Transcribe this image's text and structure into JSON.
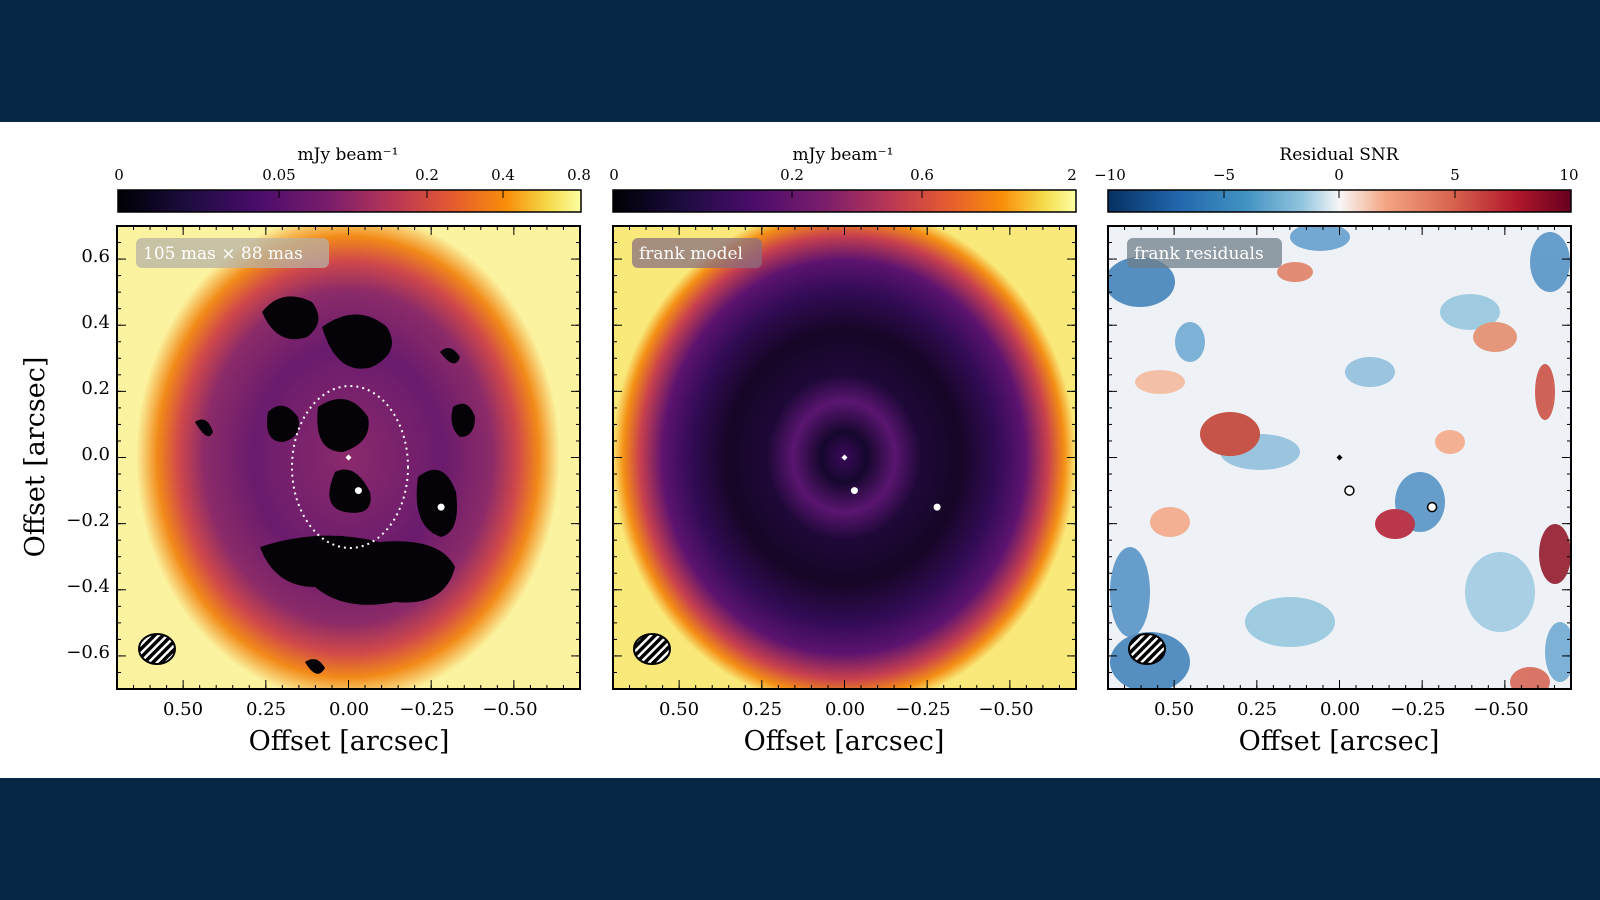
{
  "panels": [
    {
      "id": "data",
      "colorbar": {
        "label": "mJy beam⁻¹",
        "ticks": [
          {
            "label": "0",
            "value": 0
          },
          {
            "label": "0.05",
            "value": 0.05
          },
          {
            "label": "0.2",
            "value": 0.2
          },
          {
            "label": "0.4",
            "value": 0.4
          },
          {
            "label": "0.8",
            "value": 0.8
          }
        ],
        "scale": "asinh",
        "colormap": "inferno"
      },
      "badge": "105 mas × 88 mas",
      "xlabel": "Offset [arcsec]",
      "ylabel": "Offset [arcsec]",
      "xtick_labels": [
        "0.50",
        "0.25",
        "0.00",
        "−0.25",
        "−0.50"
      ],
      "ytick_labels": [
        "0.6",
        "0.4",
        "0.2",
        "0.0",
        "−0.2",
        "−0.4",
        "−0.6"
      ],
      "marker_style": "filled-white"
    },
    {
      "id": "model",
      "colorbar": {
        "label": "mJy beam⁻¹",
        "ticks": [
          {
            "label": "0",
            "value": 0
          },
          {
            "label": "0.2",
            "value": 0.2
          },
          {
            "label": "0.6",
            "value": 0.6
          },
          {
            "label": "2",
            "value": 2
          }
        ],
        "scale": "asinh",
        "colormap": "inferno"
      },
      "badge": "frank model",
      "xlabel": "Offset [arcsec]",
      "xtick_labels": [
        "0.50",
        "0.25",
        "0.00",
        "−0.25",
        "−0.50"
      ],
      "marker_style": "filled-white"
    },
    {
      "id": "residuals",
      "colorbar": {
        "label": "Residual SNR",
        "ticks": [
          {
            "label": "−10",
            "value": -10
          },
          {
            "label": "−5",
            "value": -5
          },
          {
            "label": "0",
            "value": 0
          },
          {
            "label": "5",
            "value": 5
          },
          {
            "label": "10",
            "value": 10
          }
        ],
        "scale": "linear",
        "colormap": "RdBu_r"
      },
      "badge": "frank residuals",
      "xlabel": "Offset [arcsec]",
      "xtick_labels": [
        "0.50",
        "0.25",
        "0.00",
        "−0.25",
        "−0.50"
      ],
      "marker_style": "open-white"
    }
  ],
  "chart_data": {
    "type": "heatmap",
    "x_range": [
      0.7,
      -0.7
    ],
    "y_range": [
      -0.7,
      0.7
    ],
    "xticks": [
      0.5,
      0.25,
      0.0,
      -0.25,
      -0.5
    ],
    "yticks": [
      0.6,
      0.4,
      0.2,
      0.0,
      -0.2,
      -0.4,
      -0.6
    ],
    "markers": [
      {
        "x": 0.0,
        "y": 0.0
      },
      {
        "x": -0.03,
        "y": -0.1
      },
      {
        "x": -0.28,
        "y": -0.15
      }
    ],
    "ellipse": {
      "center_x": 0.0,
      "center_y": 0.01,
      "semi_major": 0.25,
      "semi_minor": 0.18
    },
    "beam": {
      "x": 0.58,
      "y": -0.58,
      "major_mas": 105,
      "minor_mas": 88
    }
  }
}
